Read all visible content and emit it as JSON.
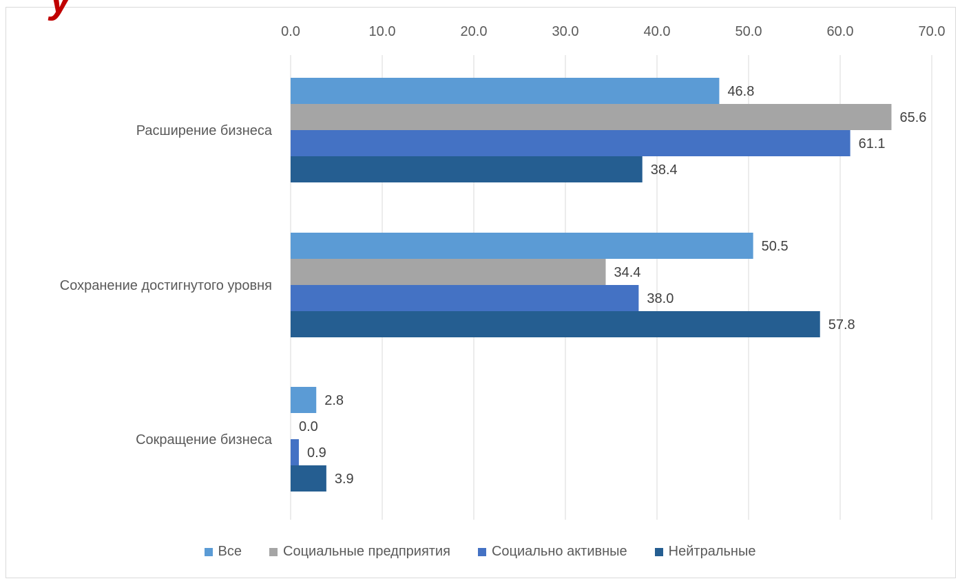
{
  "corner_glyph": "у",
  "chart_data": {
    "type": "bar",
    "orientation": "horizontal",
    "categories": [
      "Расширение бизнеса",
      "Сохранение достигнутого уровня",
      "Сокращение бизнеса"
    ],
    "series": [
      {
        "name": "Все",
        "values": [
          46.8,
          50.5,
          2.8
        ],
        "labels": [
          "46.8",
          "50.5",
          "2.8"
        ],
        "color": "#5b9bd5"
      },
      {
        "name": "Социальные предприятия",
        "values": [
          65.6,
          34.4,
          0.0
        ],
        "labels": [
          "65.6",
          "34.4",
          "0.0"
        ],
        "color": "#a5a5a5"
      },
      {
        "name": "Социально активные",
        "values": [
          61.1,
          38.0,
          0.9
        ],
        "labels": [
          "61.1",
          "38.0",
          "0.9"
        ],
        "color": "#4472c4"
      },
      {
        "name": "Нейтральные",
        "values": [
          38.4,
          57.8,
          3.9
        ],
        "labels": [
          "38.4",
          "57.8",
          "3.9"
        ],
        "color": "#255e91"
      }
    ],
    "xlim": [
      0,
      70
    ],
    "ticks": [
      "0.0",
      "10.0",
      "20.0",
      "30.0",
      "40.0",
      "50.0",
      "60.0",
      "70.0"
    ],
    "axis_position": "top",
    "grid": true,
    "legend": "bottom",
    "title": "",
    "xlabel": "",
    "ylabel": ""
  }
}
